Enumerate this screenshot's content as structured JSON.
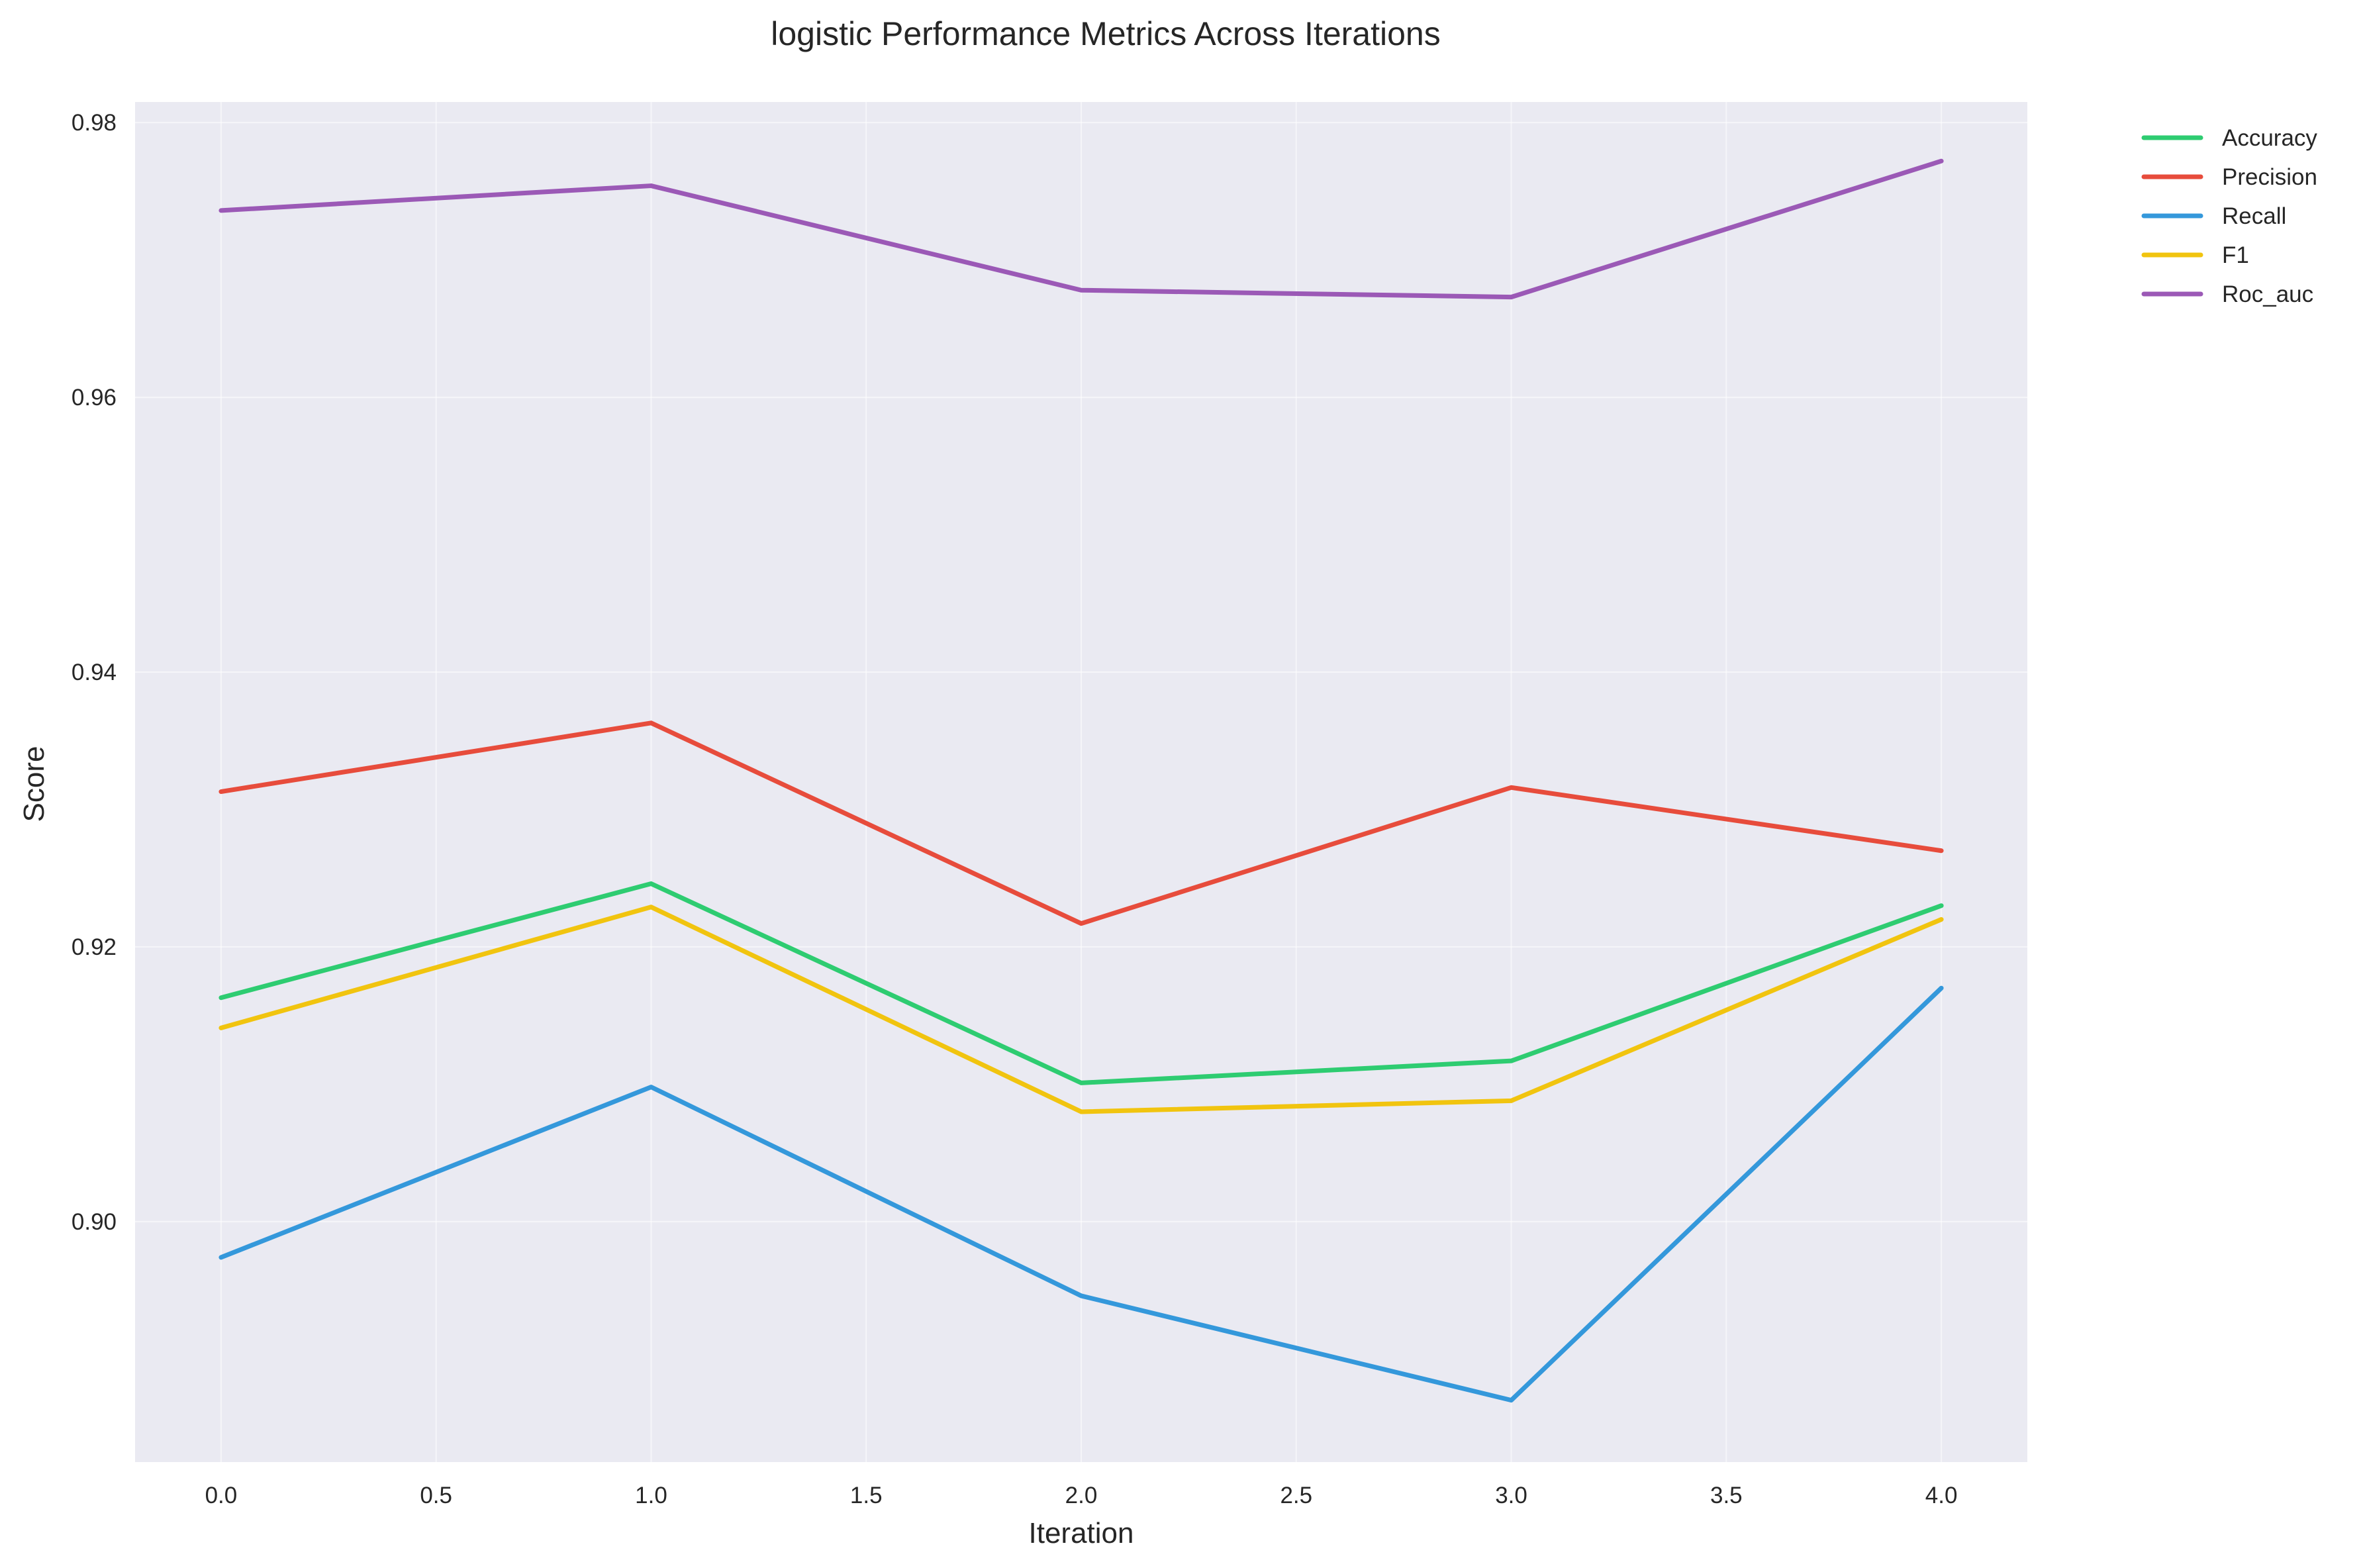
{
  "chart_data": {
    "type": "line",
    "title": "logistic Performance Metrics Across Iterations",
    "xlabel": "Iteration",
    "ylabel": "Score",
    "x": [
      0,
      1,
      2,
      3,
      4
    ],
    "xlim": [
      -0.2,
      4.2
    ],
    "ylim": [
      0.8825,
      0.9815
    ],
    "xticks": [
      0.0,
      0.5,
      1.0,
      1.5,
      2.0,
      2.5,
      3.0,
      3.5,
      4.0
    ],
    "xtick_labels": [
      "0.0",
      "0.5",
      "1.0",
      "1.5",
      "2.0",
      "2.5",
      "3.0",
      "3.5",
      "4.0"
    ],
    "yticks": [
      0.9,
      0.92,
      0.94,
      0.96,
      0.98
    ],
    "ytick_labels": [
      "0.90",
      "0.92",
      "0.94",
      "0.96",
      "0.98"
    ],
    "grid": true,
    "background_color": "#eaeaf2",
    "legend_placement": "outside upper right",
    "series": [
      {
        "name": "Accuracy",
        "color": "#2ecc71",
        "values": [
          0.9163,
          0.9246,
          0.9101,
          0.9117,
          0.923
        ]
      },
      {
        "name": "Precision",
        "color": "#e74c3c",
        "values": [
          0.9313,
          0.9363,
          0.9217,
          0.9316,
          0.927
        ]
      },
      {
        "name": "Recall",
        "color": "#3498db",
        "values": [
          0.8974,
          0.9098,
          0.8946,
          0.887,
          0.917
        ]
      },
      {
        "name": "F1",
        "color": "#f1c40f",
        "values": [
          0.9141,
          0.9229,
          0.908,
          0.9088,
          0.922
        ]
      },
      {
        "name": "Roc_auc",
        "color": "#9b59b6",
        "values": [
          0.9736,
          0.9754,
          0.9678,
          0.9673,
          0.9772
        ]
      }
    ]
  }
}
